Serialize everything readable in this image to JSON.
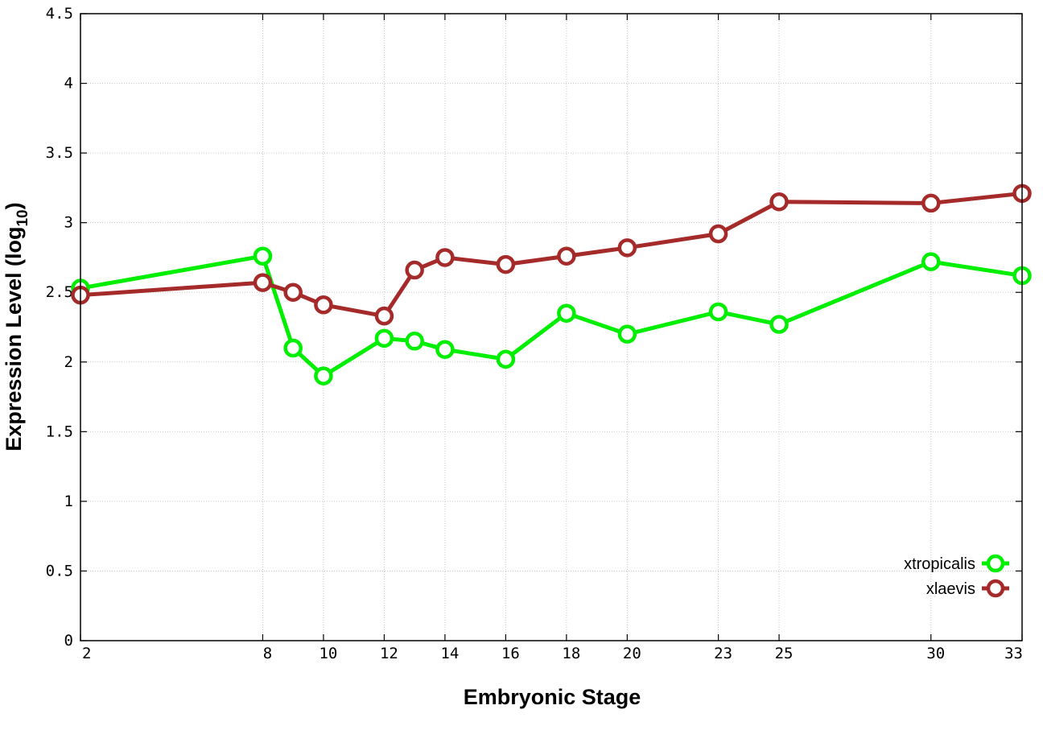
{
  "chart_data": {
    "type": "line",
    "xlabel": "Embryonic Stage",
    "ylabel": {
      "main": "Expression Level (log",
      "subscript": "10",
      "close": ")"
    },
    "ylim": [
      0,
      4.5
    ],
    "x_ticks": [
      "2",
      "8",
      "10",
      "12",
      "14",
      "16",
      "18",
      "20",
      "23",
      "25",
      "30",
      "33"
    ],
    "y_ticks": [
      "0",
      "0.5",
      "1",
      "1.5",
      "2",
      "2.5",
      "3",
      "3.5",
      "4",
      "4.5"
    ],
    "x_categories": [
      "2",
      "8",
      "9",
      "10",
      "12",
      "13",
      "14",
      "16",
      "18",
      "20",
      "23",
      "25",
      "30",
      "33"
    ],
    "grid": true,
    "legend_position": "bottom-right",
    "series": [
      {
        "name": "xtropicalis",
        "color": "#00ee00",
        "values": [
          2.53,
          2.76,
          2.1,
          1.9,
          2.17,
          2.15,
          2.09,
          2.02,
          2.35,
          2.2,
          2.36,
          2.27,
          2.72,
          2.62
        ]
      },
      {
        "name": "xlaevis",
        "color": "#a52a2a",
        "values": [
          2.48,
          2.57,
          2.5,
          2.41,
          2.33,
          2.66,
          2.75,
          2.7,
          2.76,
          2.82,
          2.92,
          3.15,
          3.14,
          3.21
        ]
      }
    ]
  }
}
